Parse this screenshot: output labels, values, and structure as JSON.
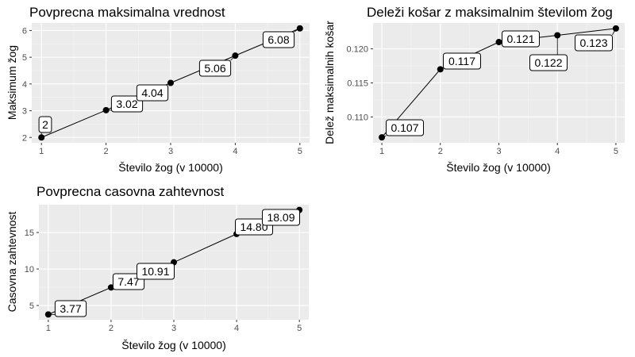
{
  "chart_data": [
    {
      "type": "line",
      "title": "Povprecna maksimalna vrednost",
      "xlabel": "Število žog (v 10000)",
      "ylabel": "Maksimum žog",
      "x": [
        1,
        2,
        3,
        4,
        5
      ],
      "values": [
        2,
        3.02,
        4.04,
        5.06,
        6.08
      ],
      "data_labels": [
        "2",
        "3.02",
        "4.04",
        "5.06",
        "6.08"
      ],
      "xticks": [
        "1",
        "2",
        "3",
        "4",
        "5"
      ],
      "yticks": [
        "2",
        "3",
        "4",
        "5",
        "6"
      ],
      "xlim": [
        0.85,
        5.15
      ],
      "ylim": [
        1.8,
        6.28
      ],
      "grid": true
    },
    {
      "type": "line",
      "title": "Deleži košar z maksimalnim številom žog",
      "xlabel": "Število žog (v 10000)",
      "ylabel": "Delež maksimalnih košar",
      "x": [
        1,
        2,
        3,
        4,
        5
      ],
      "values": [
        0.107,
        0.117,
        0.121,
        0.122,
        0.123
      ],
      "data_labels": [
        "0.107",
        "0.117",
        "0.121",
        "0.122",
        "0.123"
      ],
      "xticks": [
        "1",
        "2",
        "3",
        "4",
        "5"
      ],
      "yticks": [
        "0.110",
        "0.115",
        "0.120"
      ],
      "xlim": [
        0.85,
        5.15
      ],
      "ylim": [
        0.1062,
        0.1238
      ],
      "grid": true
    },
    {
      "type": "line",
      "title": "Povprecna casovna zahtevnost",
      "xlabel": "Število žog (v 10000)",
      "ylabel": "Casovna zahtevnost",
      "x": [
        1,
        2,
        3,
        4,
        5
      ],
      "values": [
        3.77,
        7.47,
        10.91,
        14.8,
        18.09
      ],
      "data_labels": [
        "3.77",
        "7.47",
        "10.91",
        "14.80",
        "18.09"
      ],
      "xticks": [
        "1",
        "2",
        "3",
        "4",
        "5"
      ],
      "yticks": [
        "5",
        "10",
        "15"
      ],
      "xlim": [
        0.85,
        5.15
      ],
      "ylim": [
        3.05,
        18.81
      ],
      "grid": true
    }
  ]
}
